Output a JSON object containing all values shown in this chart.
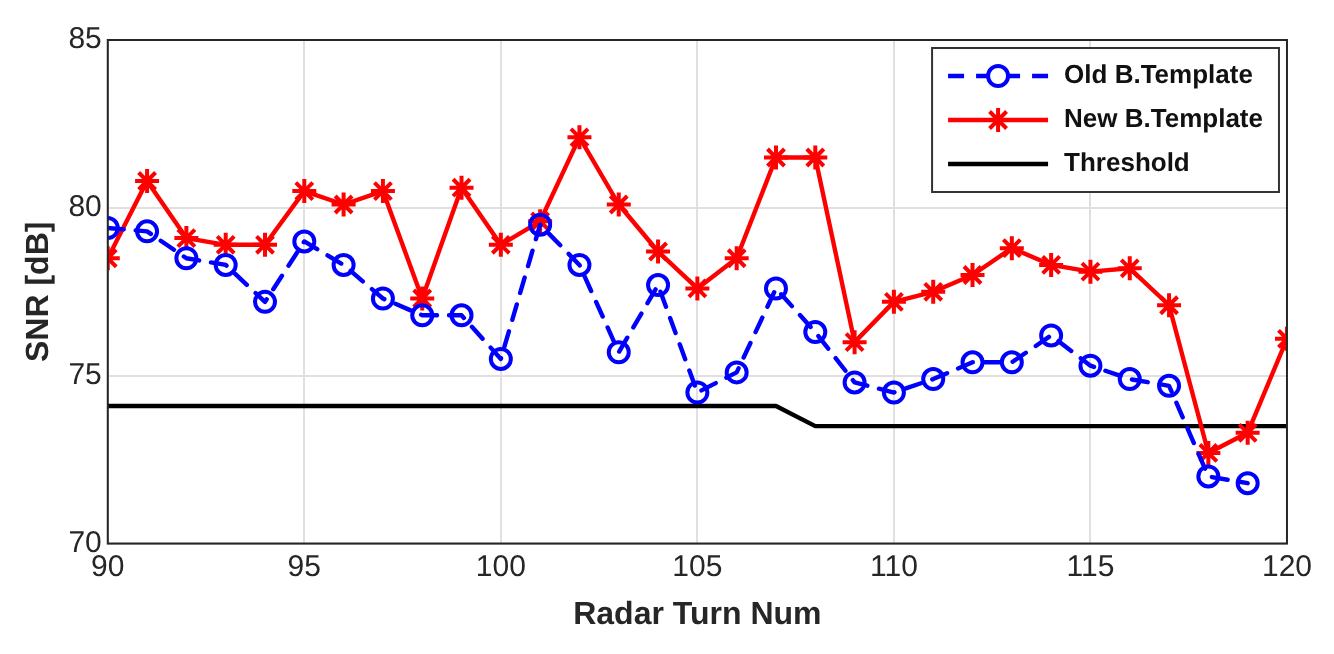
{
  "chart_data": {
    "type": "line",
    "xlabel": "Radar Turn Num",
    "ylabel": "SNR [dB]",
    "xlim": [
      90,
      120
    ],
    "xticks": [
      90,
      95,
      100,
      105,
      110,
      115,
      120
    ],
    "ylim": [
      70,
      85
    ],
    "yticks": [
      70,
      75,
      80,
      85
    ],
    "grid": true,
    "legend": "top right",
    "series": [
      {
        "name": "Old B.Template",
        "color": "#0000ff",
        "marker": "circle",
        "line_style": "dashed",
        "x": [
          90,
          91,
          92,
          93,
          94,
          95,
          96,
          97,
          98,
          99,
          100,
          101,
          102,
          103,
          104,
          105,
          106,
          107,
          108,
          109,
          110,
          111,
          112,
          113,
          114,
          115,
          116,
          117,
          118,
          119
        ],
        "values": [
          79.4,
          79.3,
          78.5,
          78.3,
          77.2,
          79.0,
          78.3,
          77.3,
          76.8,
          76.8,
          75.5,
          79.5,
          78.3,
          75.7,
          77.7,
          74.5,
          75.1,
          77.6,
          76.3,
          74.8,
          74.5,
          74.9,
          75.4,
          75.4,
          76.2,
          75.3,
          74.9,
          74.7,
          72.0,
          71.8
        ]
      },
      {
        "name": "New B.Template",
        "color": "#ff0000",
        "marker": "cross",
        "line_style": "solid",
        "x": [
          90,
          91,
          92,
          93,
          94,
          95,
          96,
          97,
          98,
          99,
          100,
          101,
          102,
          103,
          104,
          105,
          106,
          107,
          108,
          109,
          110,
          111,
          112,
          113,
          114,
          115,
          116,
          117,
          118,
          119,
          120
        ],
        "values": [
          78.5,
          80.8,
          79.1,
          78.9,
          78.9,
          80.5,
          80.1,
          80.5,
          77.3,
          80.6,
          78.9,
          79.6,
          82.1,
          80.1,
          78.7,
          77.6,
          78.5,
          81.5,
          81.5,
          76.0,
          77.2,
          77.5,
          78.0,
          78.8,
          78.3,
          78.1,
          78.2,
          77.1,
          72.7,
          73.3,
          76.1
        ]
      },
      {
        "name": "Threshold",
        "color": "#000000",
        "marker": "none",
        "line_style": "solid",
        "x": [
          90,
          107,
          108,
          120
        ],
        "values": [
          74.1,
          74.1,
          73.5,
          73.5
        ]
      }
    ]
  }
}
